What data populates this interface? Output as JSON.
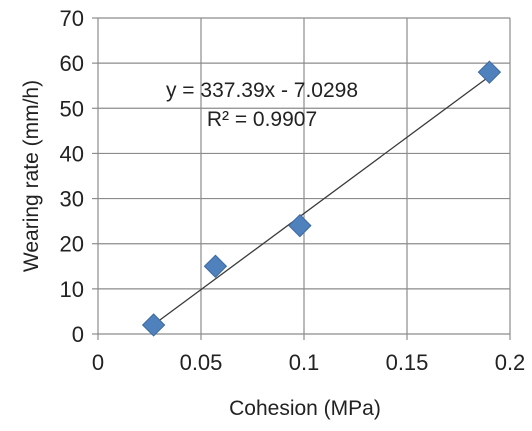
{
  "chart_data": {
    "type": "scatter",
    "title": "",
    "xlabel": "Cohesion (MPa)",
    "ylabel": "Wearing rate (mm/h)",
    "xlim": [
      0,
      0.2
    ],
    "ylim": [
      0,
      70
    ],
    "xticks": [
      0,
      0.05,
      0.1,
      0.15,
      0.2
    ],
    "xtick_labels": [
      "0",
      "0.05",
      "0.1",
      "0.15",
      "0.2"
    ],
    "yticks": [
      0,
      10,
      20,
      30,
      40,
      50,
      60,
      70
    ],
    "ytick_labels": [
      "0",
      "10",
      "20",
      "30",
      "40",
      "50",
      "60",
      "70"
    ],
    "grid": true,
    "series": [
      {
        "marker": "diamond",
        "color": "#4f81bd",
        "x": [
          0.027,
          0.057,
          0.098,
          0.19
        ],
        "y": [
          2,
          15,
          24,
          58
        ]
      }
    ],
    "trendline": {
      "type": "linear",
      "slope": 337.39,
      "intercept": -7.0298,
      "x_range": [
        0.027,
        0.19
      ],
      "color": "#3a3a3a"
    },
    "annotations": {
      "equation": "y = 337.39x - 7.0298",
      "r_squared": "R² = 0.9907"
    }
  }
}
